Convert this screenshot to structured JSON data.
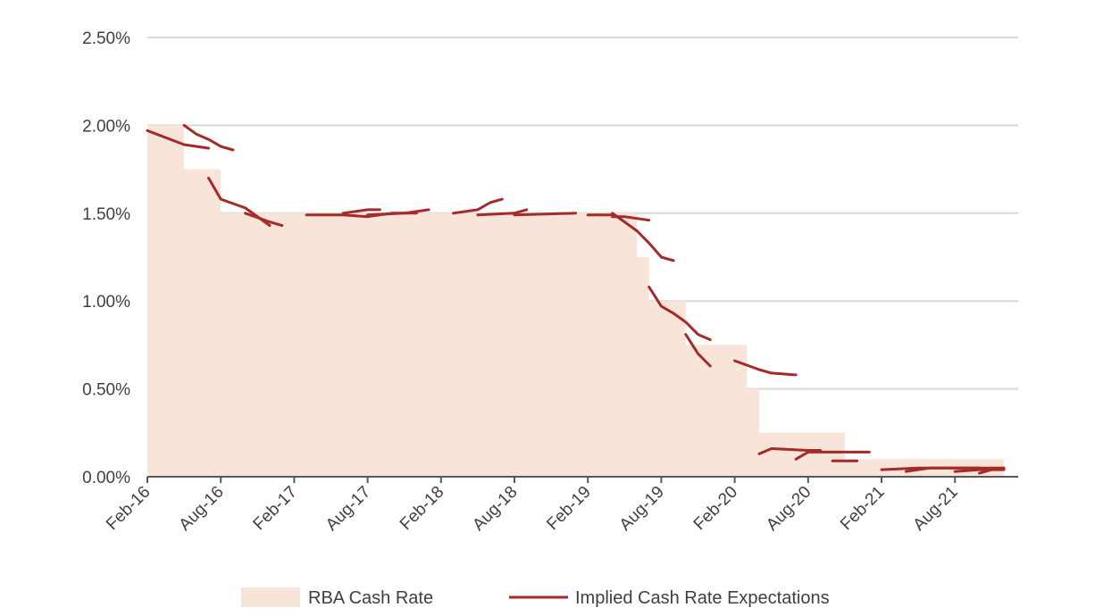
{
  "chart_data": {
    "type": "area+line",
    "title": "",
    "xlabel": "",
    "ylabel": "",
    "ylim": [
      0,
      2.5
    ],
    "y_ticks": [
      "0.00%",
      "0.50%",
      "1.00%",
      "1.50%",
      "2.00%",
      "2.50%"
    ],
    "y_tick_values": [
      0,
      0.5,
      1.0,
      1.5,
      2.0,
      2.5
    ],
    "x_ticks": [
      "Feb-16",
      "Aug-16",
      "Feb-17",
      "Aug-17",
      "Feb-18",
      "Aug-18",
      "Feb-19",
      "Aug-19",
      "Feb-20",
      "Aug-20",
      "Feb-21",
      "Aug-21"
    ],
    "x_tick_dates": [
      "2016-02",
      "2016-08",
      "2017-02",
      "2017-08",
      "2018-02",
      "2018-08",
      "2019-02",
      "2019-08",
      "2020-02",
      "2020-08",
      "2021-02",
      "2021-08"
    ],
    "grid": true,
    "legend_position": "bottom",
    "colors": {
      "area": "#f8e4d8",
      "line": "#a52a2a",
      "grid": "#d9d9d9",
      "axis": "#595959"
    },
    "series": [
      {
        "name": "RBA Cash Rate",
        "type": "step-area",
        "points": [
          [
            "2016-02",
            2.0
          ],
          [
            "2016-05",
            1.75
          ],
          [
            "2016-08",
            1.5
          ],
          [
            "2019-06",
            1.25
          ],
          [
            "2019-07",
            1.0
          ],
          [
            "2019-10",
            0.75
          ],
          [
            "2020-03",
            0.5
          ],
          [
            "2020-04",
            0.25
          ],
          [
            "2020-11",
            0.1
          ],
          [
            "2021-12",
            0.1
          ]
        ]
      },
      {
        "name": "Implied Cash Rate Expectations",
        "type": "line-segments",
        "segments": [
          [
            [
              "2016-02",
              1.97
            ],
            [
              "2016-05",
              1.89
            ],
            [
              "2016-07",
              1.87
            ]
          ],
          [
            [
              "2016-05",
              2.0
            ],
            [
              "2016-06",
              1.95
            ],
            [
              "2016-07",
              1.92
            ],
            [
              "2016-08",
              1.88
            ],
            [
              "2016-09",
              1.86
            ]
          ],
          [
            [
              "2016-07",
              1.7
            ],
            [
              "2016-08",
              1.58
            ],
            [
              "2016-10",
              1.53
            ],
            [
              "2016-12",
              1.43
            ]
          ],
          [
            [
              "2016-10",
              1.5
            ],
            [
              "2016-12",
              1.45
            ],
            [
              "2017-01",
              1.43
            ]
          ],
          [
            [
              "2017-03",
              1.49
            ],
            [
              "2017-06",
              1.49
            ],
            [
              "2017-08",
              1.48
            ],
            [
              "2017-10",
              1.5
            ],
            [
              "2017-12",
              1.5
            ]
          ],
          [
            [
              "2017-06",
              1.5
            ],
            [
              "2017-08",
              1.52
            ],
            [
              "2017-09",
              1.52
            ]
          ],
          [
            [
              "2017-08",
              1.49
            ],
            [
              "2017-11",
              1.5
            ],
            [
              "2018-01",
              1.52
            ]
          ],
          [
            [
              "2018-03",
              1.5
            ],
            [
              "2018-05",
              1.52
            ],
            [
              "2018-06",
              1.56
            ],
            [
              "2018-07",
              1.58
            ]
          ],
          [
            [
              "2018-05",
              1.49
            ],
            [
              "2018-08",
              1.5
            ],
            [
              "2018-09",
              1.52
            ]
          ],
          [
            [
              "2018-08",
              1.49
            ],
            [
              "2019-01",
              1.5
            ]
          ],
          [
            [
              "2019-02",
              1.49
            ],
            [
              "2019-04",
              1.49
            ]
          ],
          [
            [
              "2019-04",
              1.48
            ],
            [
              "2019-05",
              1.48
            ],
            [
              "2019-07",
              1.46
            ]
          ],
          [
            [
              "2019-04",
              1.5
            ],
            [
              "2019-05",
              1.45
            ],
            [
              "2019-06",
              1.4
            ],
            [
              "2019-07",
              1.33
            ],
            [
              "2019-08",
              1.25
            ],
            [
              "2019-09",
              1.23
            ]
          ],
          [
            [
              "2019-07",
              1.08
            ],
            [
              "2019-08",
              0.97
            ],
            [
              "2019-09",
              0.93
            ],
            [
              "2019-10",
              0.88
            ],
            [
              "2019-11",
              0.81
            ],
            [
              "2019-12",
              0.78
            ]
          ],
          [
            [
              "2019-10",
              0.81
            ],
            [
              "2019-11",
              0.7
            ],
            [
              "2019-12",
              0.63
            ]
          ],
          [
            [
              "2020-02",
              0.66
            ],
            [
              "2020-04",
              0.61
            ],
            [
              "2020-05",
              0.59
            ],
            [
              "2020-07",
              0.58
            ]
          ],
          [
            [
              "2020-04",
              0.13
            ],
            [
              "2020-05",
              0.16
            ],
            [
              "2020-08",
              0.15
            ],
            [
              "2020-09",
              0.15
            ]
          ],
          [
            [
              "2020-07",
              0.1
            ],
            [
              "2020-08",
              0.14
            ],
            [
              "2020-09",
              0.14
            ],
            [
              "2020-11",
              0.14
            ],
            [
              "2021-01",
              0.14
            ]
          ],
          [
            [
              "2020-10",
              0.09
            ],
            [
              "2020-11",
              0.09
            ],
            [
              "2020-12",
              0.09
            ]
          ],
          [
            [
              "2021-02",
              0.04
            ],
            [
              "2021-05",
              0.05
            ],
            [
              "2021-08",
              0.05
            ],
            [
              "2021-10",
              0.05
            ]
          ],
          [
            [
              "2021-04",
              0.03
            ],
            [
              "2021-06",
              0.05
            ],
            [
              "2021-09",
              0.05
            ],
            [
              "2021-12",
              0.05
            ]
          ],
          [
            [
              "2021-08",
              0.03
            ],
            [
              "2021-10",
              0.04
            ],
            [
              "2021-12",
              0.04
            ]
          ],
          [
            [
              "2021-10",
              0.02
            ],
            [
              "2021-11",
              0.04
            ],
            [
              "2021-12",
              0.05
            ]
          ]
        ]
      }
    ]
  }
}
